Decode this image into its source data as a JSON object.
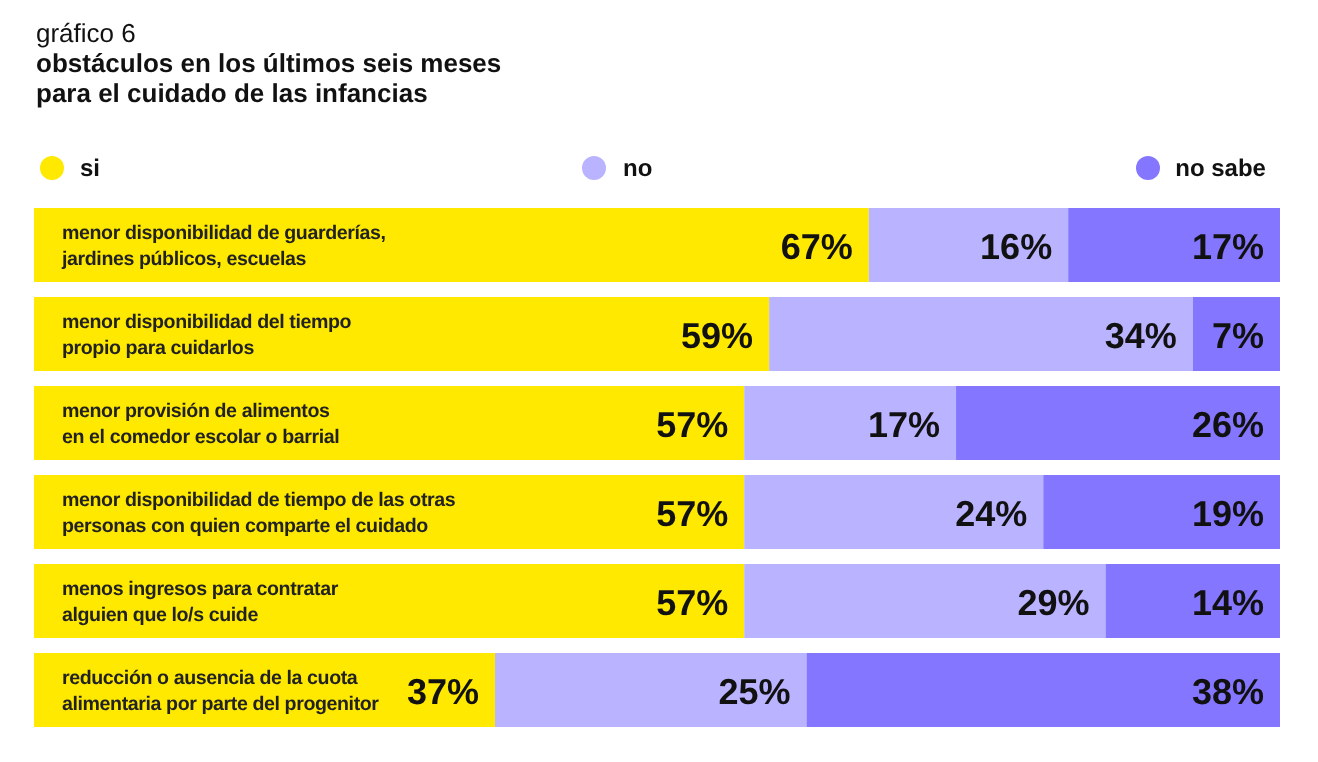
{
  "chart_data": {
    "type": "bar",
    "orientation": "horizontal",
    "stacked": true,
    "title": "obstáculos en los últimos seis meses\npara el cuidado de las infancias",
    "subtitle": "gráfico 6",
    "categories": [
      "menor disponibilidad de guarderías,\njardines públicos, escuelas",
      "menor disponibilidad del tiempo\npropio para cuidarlos",
      "menor provisión de alimentos\nen el comedor escolar o barrial",
      "menor disponibilidad de tiempo de las otras\npersonas con quien comparte el cuidado",
      "menos ingresos para contratar\nalguien que lo/s cuide",
      "reducción o ausencia de la cuota\nalimentaria por parte del progenitor"
    ],
    "series": [
      {
        "name": "si",
        "color": "#ffe900",
        "values": [
          67,
          59,
          57,
          57,
          57,
          37
        ],
        "value_labels": [
          "67%",
          "59%",
          "57%",
          "57%",
          "57%",
          "37%"
        ]
      },
      {
        "name": "no",
        "color": "#bab3ff",
        "values": [
          16,
          34,
          17,
          24,
          29,
          25
        ],
        "value_labels": [
          "16%",
          "34%",
          "17%",
          "24%",
          "29%",
          "25%"
        ]
      },
      {
        "name": "no sabe",
        "color": "#8576ff",
        "values": [
          17,
          7,
          26,
          19,
          14,
          38
        ],
        "value_labels": [
          "17%",
          "7%",
          "26%",
          "19%",
          "14%",
          "38%"
        ]
      }
    ],
    "xlim": [
      0,
      100
    ],
    "legend": "top",
    "grid": false
  }
}
